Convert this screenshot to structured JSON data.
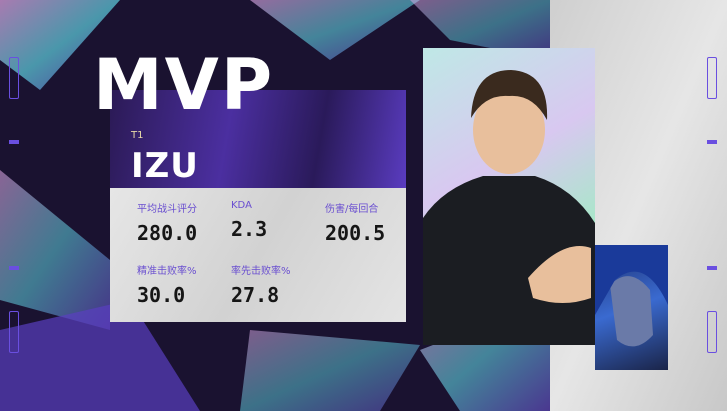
{
  "title": "MVP",
  "player": {
    "team": "T1",
    "name": "IZU"
  },
  "stats": [
    {
      "label": "平均战斗评分",
      "value": "280.0"
    },
    {
      "label": "KDA",
      "value": "2.3"
    },
    {
      "label": "伤害/每回合",
      "value": "200.5"
    },
    {
      "label": "精准击败率%",
      "value": "30.0"
    },
    {
      "label": "率先击败率%",
      "value": "27.8"
    }
  ],
  "colors": {
    "accent": "#6a4fe0",
    "background": "#1a1230",
    "panel": "#e0e0e0"
  }
}
